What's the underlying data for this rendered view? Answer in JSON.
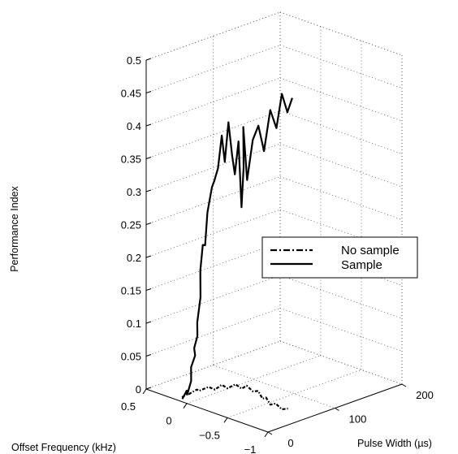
{
  "chart_data": {
    "type": "line",
    "view": "3d",
    "title": "",
    "xlabel": "Offset Frequency (kHz)",
    "ylabel": "Pulse Width (µs)",
    "zlabel": "Performance Index",
    "xlim": [
      0.5,
      -1
    ],
    "ylim": [
      0,
      200
    ],
    "zlim": [
      0,
      0.5
    ],
    "xticks": [
      0.5,
      0,
      -0.5,
      -1
    ],
    "xtick_labels": [
      "0.5",
      "0",
      "−0.5",
      "−1"
    ],
    "yticks": [
      0,
      100,
      200
    ],
    "ytick_labels": [
      "0",
      "100",
      "200"
    ],
    "zticks": [
      0,
      0.05,
      0.1,
      0.15,
      0.2,
      0.25,
      0.3,
      0.35,
      0.4,
      0.45,
      0.5
    ],
    "ztick_labels": [
      "0",
      "0.05",
      "0.1",
      "0.15",
      "0.2",
      "0.25",
      "0.3",
      "0.35",
      "0.4",
      "0.45",
      "0.5"
    ],
    "grid": true,
    "legend_position": "right",
    "series": [
      {
        "name": "No sample",
        "style": "dash-dot",
        "color": "#000000",
        "points": [
          [
            0.1,
            5,
            0.003
          ],
          [
            0.07,
            10,
            0.008
          ],
          [
            0.09,
            14,
            0.005
          ],
          [
            0.04,
            20,
            0.012
          ],
          [
            0.06,
            26,
            0.007
          ],
          [
            -0.02,
            30,
            0.015
          ],
          [
            -0.05,
            36,
            0.01
          ],
          [
            -0.1,
            40,
            0.018
          ],
          [
            -0.14,
            44,
            0.013
          ],
          [
            -0.22,
            46,
            0.022
          ],
          [
            -0.28,
            48,
            0.017
          ],
          [
            -0.35,
            47,
            0.025
          ],
          [
            -0.42,
            48,
            0.019
          ],
          [
            -0.5,
            46,
            0.024
          ],
          [
            -0.57,
            44,
            0.016
          ],
          [
            -0.63,
            42,
            0.021
          ],
          [
            -0.7,
            40,
            0.014
          ],
          [
            -0.78,
            38,
            0.02
          ],
          [
            -0.84,
            40,
            0.013
          ],
          [
            -0.9,
            42,
            0.016
          ]
        ]
      },
      {
        "name": "Sample",
        "style": "solid",
        "color": "#000000",
        "points": [
          [
            0.08,
            3,
            0.002
          ],
          [
            0.05,
            6,
            0.015
          ],
          [
            0.06,
            8,
            0.008
          ],
          [
            0.02,
            9,
            0.03
          ],
          [
            0.03,
            10,
            0.05
          ],
          [
            -0.02,
            10,
            0.07
          ],
          [
            0.0,
            11,
            0.08
          ],
          [
            -0.04,
            11,
            0.1
          ],
          [
            -0.03,
            12,
            0.12
          ],
          [
            -0.07,
            12,
            0.16
          ],
          [
            -0.06,
            13,
            0.2
          ],
          [
            -0.09,
            13,
            0.24
          ],
          [
            -0.11,
            14,
            0.24
          ],
          [
            -0.13,
            15,
            0.29
          ],
          [
            -0.15,
            16,
            0.31
          ],
          [
            -0.17,
            17,
            0.33
          ],
          [
            -0.19,
            18,
            0.34
          ],
          [
            -0.22,
            20,
            0.36
          ],
          [
            -0.25,
            22,
            0.41
          ],
          [
            -0.27,
            24,
            0.37
          ],
          [
            -0.29,
            27,
            0.43
          ],
          [
            -0.31,
            30,
            0.38
          ],
          [
            -0.32,
            33,
            0.35
          ],
          [
            -0.34,
            36,
            0.4
          ],
          [
            -0.36,
            38,
            0.3
          ],
          [
            -0.37,
            40,
            0.36
          ],
          [
            -0.35,
            42,
            0.42
          ],
          [
            -0.38,
            44,
            0.34
          ],
          [
            -0.4,
            50,
            0.4
          ],
          [
            -0.42,
            56,
            0.42
          ],
          [
            -0.44,
            62,
            0.38
          ],
          [
            -0.45,
            70,
            0.44
          ],
          [
            -0.46,
            78,
            0.41
          ],
          [
            -0.47,
            85,
            0.46
          ],
          [
            -0.48,
            92,
            0.43
          ],
          [
            -0.49,
            98,
            0.45
          ]
        ]
      }
    ]
  }
}
